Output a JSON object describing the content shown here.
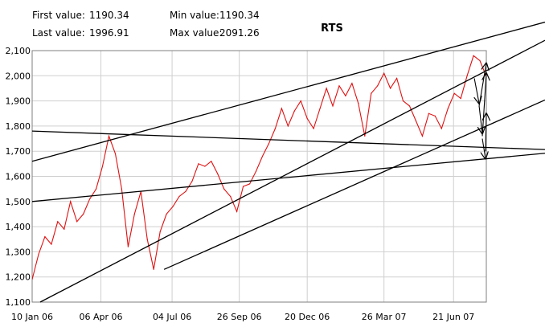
{
  "stats": {
    "first_label": "First value:",
    "first_value": "1190.34",
    "last_label": "Last value:",
    "last_value": "1996.91",
    "min_label": "Min value:",
    "min_value": "1190.34",
    "max_label": "Max value:",
    "max_value": "2091.26"
  },
  "colors": {
    "series": "#e01010",
    "trendlines": "#000000",
    "grid": "#cfcfcf",
    "plot_border": "#7f7f7f",
    "outer_background": "#f3f3f3"
  },
  "chart_data": {
    "type": "line",
    "title": "RTS",
    "xlabel": "",
    "ylabel": "",
    "ylim": [
      1100,
      2100
    ],
    "yticks": [
      "1,100",
      "1,200",
      "1,300",
      "1,400",
      "1,500",
      "1,600",
      "1,700",
      "1,800",
      "1,900",
      "2,000",
      "2,100"
    ],
    "ytick_values": [
      1100,
      1200,
      1300,
      1400,
      1500,
      1600,
      1700,
      1800,
      1900,
      2000,
      2100
    ],
    "xlim": [
      "2006-01-10",
      "2007-08-01"
    ],
    "xticks": [
      "10 Jan 06",
      "06 Apr 06",
      "04 Jul 06",
      "26 Sep 06",
      "20 Dec 06",
      "26 Mar 07",
      "21 Jun 07"
    ],
    "xtick_dates": [
      "2006-01-10",
      "2006-04-06",
      "2006-07-04",
      "2006-09-26",
      "2006-12-20",
      "2007-03-26",
      "2007-06-21"
    ],
    "grid": true,
    "series": [
      {
        "x": [
          "2006-01-10",
          "2006-01-18",
          "2006-01-26",
          "2006-02-03",
          "2006-02-11",
          "2006-02-19",
          "2006-02-27",
          "2006-03-07",
          "2006-03-15",
          "2006-03-23",
          "2006-03-31",
          "2006-04-08",
          "2006-04-16",
          "2006-04-24",
          "2006-05-02",
          "2006-05-10",
          "2006-05-18",
          "2006-05-26",
          "2006-06-03",
          "2006-06-11",
          "2006-06-19",
          "2006-06-27",
          "2006-07-05",
          "2006-07-13",
          "2006-07-21",
          "2006-07-29",
          "2006-08-06",
          "2006-08-14",
          "2006-08-22",
          "2006-08-30",
          "2006-09-07",
          "2006-09-15",
          "2006-09-23",
          "2006-10-01",
          "2006-10-09",
          "2006-10-17",
          "2006-10-25",
          "2006-11-02",
          "2006-11-10",
          "2006-11-18",
          "2006-11-26",
          "2006-12-04",
          "2006-12-12",
          "2006-12-20",
          "2006-12-28",
          "2007-01-05",
          "2007-01-13",
          "2007-01-21",
          "2007-01-29",
          "2007-02-06",
          "2007-02-14",
          "2007-02-22",
          "2007-03-02",
          "2007-03-10",
          "2007-03-18",
          "2007-03-26",
          "2007-04-03",
          "2007-04-11",
          "2007-04-19",
          "2007-04-27",
          "2007-05-05",
          "2007-05-13",
          "2007-05-21",
          "2007-05-29",
          "2007-06-06",
          "2007-06-14",
          "2007-06-22",
          "2007-06-30",
          "2007-07-08",
          "2007-07-16",
          "2007-07-24",
          "2007-08-01"
        ],
        "y": [
          1190,
          1290,
          1360,
          1330,
          1420,
          1390,
          1500,
          1420,
          1450,
          1510,
          1550,
          1640,
          1760,
          1690,
          1550,
          1320,
          1450,
          1540,
          1350,
          1230,
          1380,
          1450,
          1480,
          1520,
          1540,
          1580,
          1650,
          1640,
          1660,
          1610,
          1550,
          1520,
          1460,
          1560,
          1570,
          1620,
          1680,
          1730,
          1790,
          1870,
          1800,
          1860,
          1900,
          1830,
          1790,
          1870,
          1950,
          1880,
          1960,
          1920,
          1970,
          1890,
          1760,
          1930,
          1960,
          2010,
          1950,
          1990,
          1900,
          1880,
          1820,
          1760,
          1850,
          1840,
          1790,
          1870,
          1930,
          1910,
          2000,
          2080,
          2060,
          1997
        ]
      }
    ],
    "trendlines": [
      {
        "x": [
          "2006-01-10",
          "2007-08-01"
        ],
        "y": [
          1660,
          2150
        ]
      },
      {
        "x": [
          "2006-01-10",
          "2007-08-01"
        ],
        "y": [
          1780,
          1715
        ]
      },
      {
        "x": [
          "2006-01-10",
          "2007-08-01"
        ],
        "y": [
          1500,
          1670
        ]
      },
      {
        "x": [
          "2006-01-20",
          "2007-08-01"
        ],
        "y": [
          1100,
          2020
        ]
      },
      {
        "x": [
          "2006-06-24",
          "2007-08-01"
        ],
        "y": [
          1230,
          1800
        ]
      }
    ],
    "arrows": [
      {
        "x": [
          "2007-07-17",
          "2007-07-23"
        ],
        "y": [
          1990,
          1890
        ]
      },
      {
        "x": [
          "2007-07-23",
          "2007-07-27"
        ],
        "y": [
          1880,
          1770
        ]
      },
      {
        "x": [
          "2007-07-27",
          "2007-07-31"
        ],
        "y": [
          1750,
          1670
        ]
      },
      {
        "x": [
          "2007-07-23",
          "2007-08-01"
        ],
        "y": [
          1880,
          2050
        ]
      },
      {
        "x": [
          "2007-07-27",
          "2007-08-01"
        ],
        "y": [
          1760,
          2010
        ]
      },
      {
        "x": [
          "2007-07-31",
          "2007-08-01"
        ],
        "y": [
          1700,
          1850
        ]
      }
    ]
  }
}
